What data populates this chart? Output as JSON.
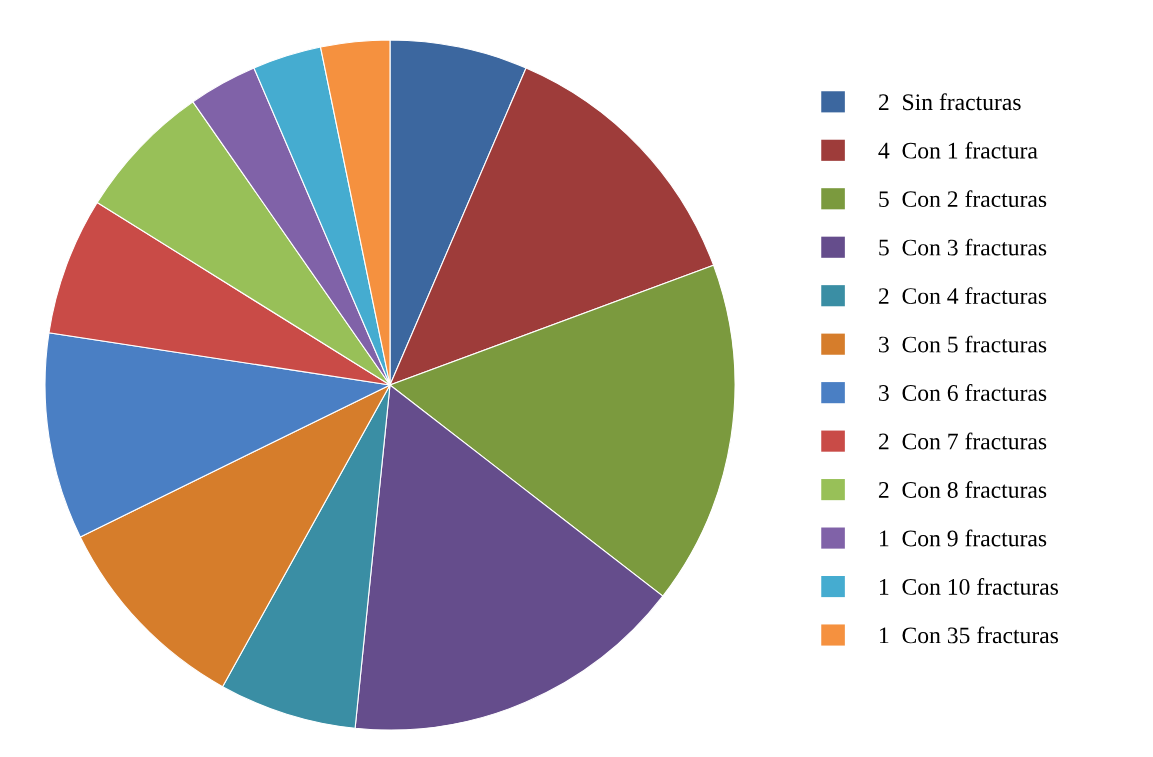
{
  "chart_data": {
    "type": "pie",
    "categories": [
      "2  Sin fracturas",
      "4  Con 1 fractura",
      "5  Con 2 fracturas",
      "5  Con 3 fracturas",
      "2  Con 4 fracturas",
      "3  Con 5 fracturas",
      "3  Con 6 fracturas",
      "2  Con 7 fracturas",
      "2  Con 8 fracturas",
      "1  Con 9 fracturas",
      "1  Con 10 fracturas",
      "1  Con 35 fracturas"
    ],
    "values": [
      2,
      4,
      5,
      5,
      2,
      3,
      3,
      2,
      2,
      1,
      1,
      1
    ],
    "colors": [
      "#3c679f",
      "#9e3c3a",
      "#7b9a3e",
      "#654d8c",
      "#3a8ea4",
      "#d67d2b",
      "#4a7fc4",
      "#c94b47",
      "#98c058",
      "#8062a8",
      "#45acd0",
      "#f5913f"
    ],
    "legend": "right"
  }
}
